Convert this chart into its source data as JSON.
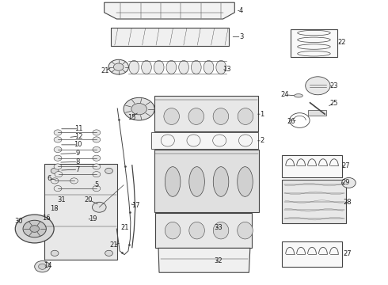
{
  "background_color": "#ffffff",
  "fig_width": 4.9,
  "fig_height": 3.6,
  "dpi": 100,
  "label_fontsize": 6,
  "label_color": "#222222",
  "line_color": "#444444",
  "line_width": 0.8
}
